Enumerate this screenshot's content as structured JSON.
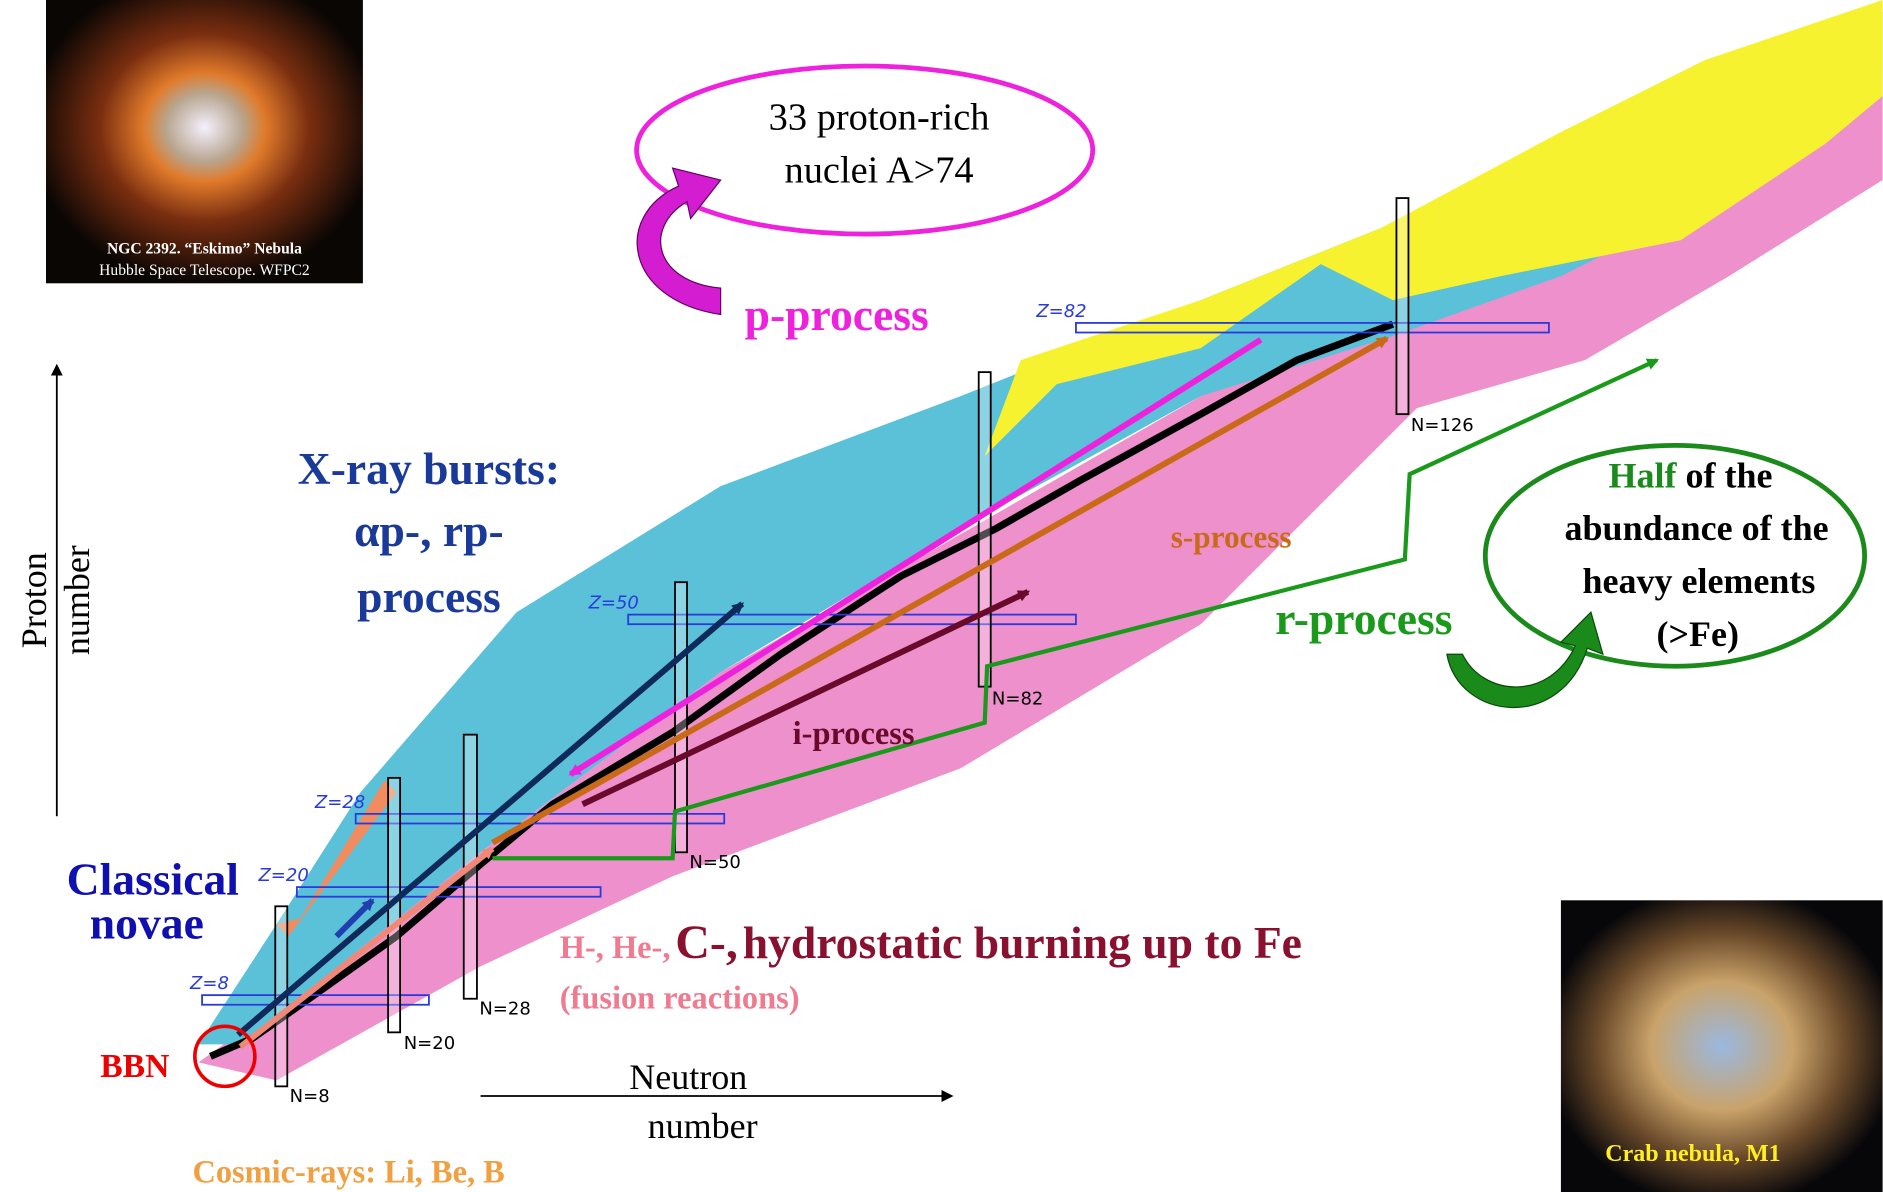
{
  "images": {
    "eskimo": {
      "caption": "NGC 2392. “Eskimo” Nebula",
      "credit": "Hubble Space Telescope. WFPC2"
    },
    "crab": {
      "caption": "Crab nebula, M1"
    }
  },
  "axes": {
    "y_label": [
      "Proton",
      "number"
    ],
    "x_label": [
      "Neutron",
      "number"
    ]
  },
  "magic_numbers": {
    "z": [
      "Z=8",
      "Z=20",
      "Z=28",
      "Z=50",
      "Z=82"
    ],
    "n": [
      "N=8",
      "N=20",
      "N=28",
      "N=50",
      "N=82",
      "N=126"
    ]
  },
  "p_rich_note": [
    "33 proton-rich",
    "nuclei A>74"
  ],
  "processes": {
    "p": "p-process",
    "x_ray": [
      "X-ray bursts:",
      "αp-, rp-",
      "process"
    ],
    "novae": [
      "Classical",
      "novae"
    ],
    "s": "s-process",
    "i": "i-process",
    "r": "r-process",
    "bbn": "BBN",
    "cosmic": "Cosmic-rays: Li, Be, B",
    "hydrostatic": {
      "h_he": "H-, He-,",
      "c": "C-,",
      "rest": "hydrostatic burning up to Fe",
      "note": "(fusion reactions)"
    }
  },
  "r_note": {
    "half": "Half",
    "lines": [
      "of the",
      "abundance of the",
      "heavy elements",
      "(>Fe)"
    ]
  }
}
